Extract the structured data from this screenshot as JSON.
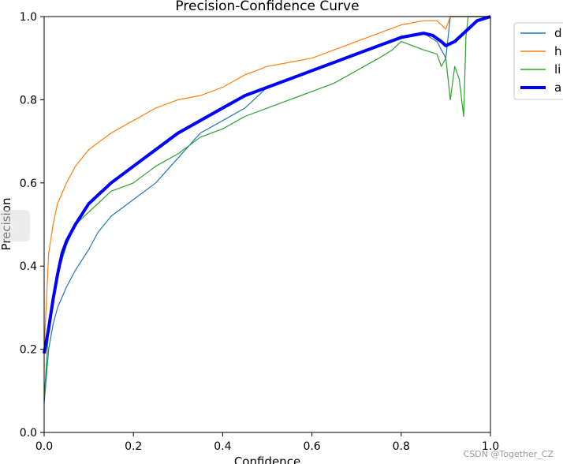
{
  "chart_data": {
    "type": "line",
    "title": "Precision-Confidence Curve",
    "xlabel": "Confidence",
    "ylabel": "Precision",
    "xlim": [
      0.0,
      1.0
    ],
    "ylim": [
      0.0,
      1.0
    ],
    "xticks": [
      "0.0",
      "0.2",
      "0.4",
      "0.6",
      "0.8",
      "1.0"
    ],
    "yticks": [
      "0.0",
      "0.2",
      "0.4",
      "0.6",
      "0.8",
      "1.0"
    ],
    "grid": false,
    "legend_position": "outside-top-right",
    "series": [
      {
        "name": "d",
        "color": "#1f77b4",
        "width": "thin",
        "x": [
          0.0,
          0.01,
          0.02,
          0.03,
          0.05,
          0.07,
          0.1,
          0.12,
          0.15,
          0.2,
          0.25,
          0.3,
          0.35,
          0.4,
          0.45,
          0.5,
          0.53,
          0.55,
          0.6,
          0.65,
          0.7,
          0.75,
          0.8,
          0.85,
          0.88,
          0.9,
          0.91,
          0.92,
          0.95,
          1.0
        ],
        "y": [
          0.07,
          0.2,
          0.26,
          0.3,
          0.35,
          0.39,
          0.44,
          0.48,
          0.52,
          0.56,
          0.6,
          0.66,
          0.72,
          0.75,
          0.78,
          0.83,
          0.84,
          0.85,
          0.87,
          0.89,
          0.91,
          0.93,
          0.95,
          0.96,
          0.94,
          0.9,
          1.0,
          1.0,
          1.0,
          1.0
        ]
      },
      {
        "name": "h",
        "color": "#ff7f0e",
        "width": "thin",
        "x": [
          0.0,
          0.01,
          0.02,
          0.03,
          0.05,
          0.07,
          0.1,
          0.15,
          0.2,
          0.25,
          0.3,
          0.35,
          0.4,
          0.45,
          0.5,
          0.55,
          0.6,
          0.65,
          0.7,
          0.75,
          0.8,
          0.85,
          0.88,
          0.9,
          0.91,
          0.92,
          0.95,
          1.0
        ],
        "y": [
          0.2,
          0.43,
          0.5,
          0.55,
          0.6,
          0.64,
          0.68,
          0.72,
          0.75,
          0.78,
          0.8,
          0.81,
          0.83,
          0.86,
          0.88,
          0.89,
          0.9,
          0.92,
          0.94,
          0.96,
          0.98,
          0.99,
          0.99,
          0.97,
          1.0,
          1.0,
          1.0,
          1.0
        ]
      },
      {
        "name": "li",
        "color": "#2ca02c",
        "width": "thin",
        "x": [
          0.0,
          0.01,
          0.02,
          0.03,
          0.05,
          0.07,
          0.1,
          0.13,
          0.15,
          0.2,
          0.25,
          0.3,
          0.35,
          0.4,
          0.45,
          0.5,
          0.55,
          0.6,
          0.65,
          0.7,
          0.75,
          0.78,
          0.8,
          0.85,
          0.88,
          0.89,
          0.9,
          0.91,
          0.92,
          0.93,
          0.94,
          0.945,
          0.95,
          1.0
        ],
        "y": [
          0.08,
          0.25,
          0.31,
          0.38,
          0.45,
          0.5,
          0.53,
          0.56,
          0.58,
          0.6,
          0.64,
          0.67,
          0.71,
          0.73,
          0.76,
          0.78,
          0.8,
          0.82,
          0.84,
          0.87,
          0.9,
          0.92,
          0.94,
          0.92,
          0.91,
          0.88,
          0.9,
          0.8,
          0.88,
          0.85,
          0.76,
          0.95,
          1.0,
          1.0
        ]
      },
      {
        "name": "a",
        "color": "#0000ff",
        "width": "thick",
        "x": [
          0.0,
          0.005,
          0.01,
          0.02,
          0.03,
          0.04,
          0.05,
          0.07,
          0.1,
          0.15,
          0.2,
          0.25,
          0.3,
          0.35,
          0.4,
          0.45,
          0.5,
          0.55,
          0.6,
          0.65,
          0.7,
          0.75,
          0.8,
          0.85,
          0.87,
          0.89,
          0.9,
          0.92,
          0.94,
          0.97,
          1.0
        ],
        "y": [
          0.19,
          0.22,
          0.25,
          0.32,
          0.38,
          0.43,
          0.46,
          0.5,
          0.55,
          0.6,
          0.64,
          0.68,
          0.72,
          0.75,
          0.78,
          0.81,
          0.83,
          0.85,
          0.87,
          0.89,
          0.91,
          0.93,
          0.95,
          0.96,
          0.955,
          0.94,
          0.93,
          0.94,
          0.96,
          0.99,
          1.0
        ]
      }
    ]
  },
  "watermark": "CSDN @Together_CZ",
  "nav": {
    "icon": "chevron-left-icon",
    "glyph": "‹"
  }
}
